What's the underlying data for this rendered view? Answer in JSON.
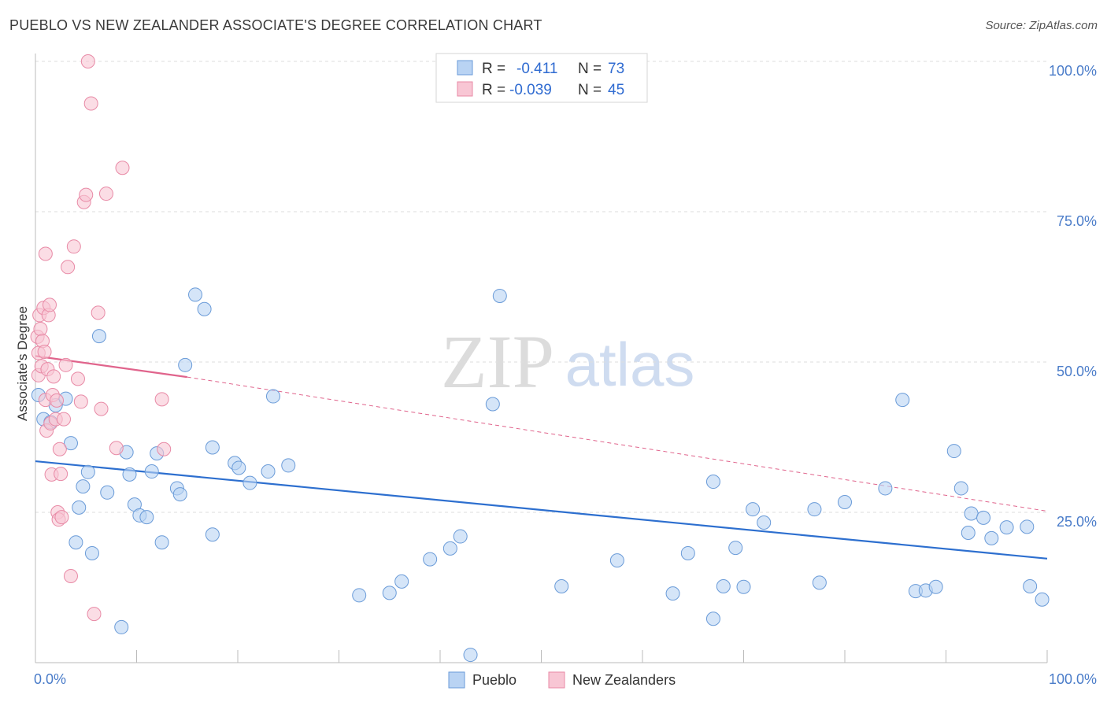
{
  "header": {
    "title": "PUEBLO VS NEW ZEALANDER ASSOCIATE'S DEGREE CORRELATION CHART",
    "source": "Source: ZipAtlas.com"
  },
  "colors": {
    "pueblo_fill": "#b9d3f3",
    "pueblo_stroke": "#6a9bd8",
    "pueblo_line": "#2d6fcf",
    "nz_fill": "#f8c6d4",
    "nz_stroke": "#e88aa6",
    "nz_line": "#e0648c",
    "axis_text": "#4a7cc9"
  },
  "legend": {
    "rows": [
      {
        "r_label": "R =",
        "r_value": "-0.411",
        "n_label": "N =",
        "n_value": "73"
      },
      {
        "r_label": "R =",
        "r_value": "-0.039",
        "n_label": "N =",
        "n_value": "45"
      }
    ]
  },
  "bottom_legend": {
    "pueblo": "Pueblo",
    "nz": "New Zealanders"
  },
  "watermark": {
    "zip": "ZIP",
    "atlas": "atlas"
  },
  "chart_data": {
    "type": "scatter",
    "title": "PUEBLO VS NEW ZEALANDER ASSOCIATE'S DEGREE CORRELATION CHART",
    "xlabel": "",
    "ylabel": "Associate's Degree",
    "xlim": [
      0,
      100
    ],
    "ylim": [
      0,
      100
    ],
    "x_tick_labels": [
      "0.0%",
      "100.0%"
    ],
    "y_ticks": [
      {
        "value": 25,
        "label": "25.0%"
      },
      {
        "value": 50,
        "label": "50.0%"
      },
      {
        "value": 75,
        "label": "75.0%"
      },
      {
        "value": 100,
        "label": "100.0%"
      }
    ],
    "series": [
      {
        "name": "Pueblo",
        "r": -0.411,
        "n": 73,
        "trend": {
          "x0": 0,
          "y0": 33.5,
          "x1": 100,
          "y1": 17.3,
          "dashed_extension": false
        },
        "points": [
          [
            0.3,
            44.5
          ],
          [
            0.8,
            40.5
          ],
          [
            1.5,
            40.0
          ],
          [
            2.0,
            42.8
          ],
          [
            3.0,
            43.9
          ],
          [
            3.5,
            36.5
          ],
          [
            4.0,
            20.0
          ],
          [
            4.3,
            25.8
          ],
          [
            4.7,
            29.3
          ],
          [
            5.2,
            31.7
          ],
          [
            5.6,
            18.2
          ],
          [
            6.3,
            54.3
          ],
          [
            7.1,
            28.3
          ],
          [
            8.5,
            5.9
          ],
          [
            9.0,
            35.0
          ],
          [
            9.3,
            31.3
          ],
          [
            9.8,
            26.3
          ],
          [
            10.3,
            24.5
          ],
          [
            11.0,
            24.2
          ],
          [
            11.5,
            31.8
          ],
          [
            12.0,
            34.8
          ],
          [
            12.5,
            20.0
          ],
          [
            14.0,
            29.0
          ],
          [
            14.3,
            28.0
          ],
          [
            14.8,
            49.5
          ],
          [
            15.8,
            61.2
          ],
          [
            16.7,
            58.8
          ],
          [
            17.5,
            35.8
          ],
          [
            17.5,
            21.3
          ],
          [
            19.7,
            33.2
          ],
          [
            20.1,
            32.4
          ],
          [
            21.2,
            29.9
          ],
          [
            23.0,
            31.8
          ],
          [
            23.5,
            44.3
          ],
          [
            25.0,
            32.8
          ],
          [
            32.0,
            11.2
          ],
          [
            35.0,
            11.6
          ],
          [
            36.2,
            13.5
          ],
          [
            39.0,
            17.2
          ],
          [
            41.0,
            19.0
          ],
          [
            42.0,
            21.0
          ],
          [
            43.0,
            1.3
          ],
          [
            45.2,
            43.0
          ],
          [
            45.9,
            61.0
          ],
          [
            57.5,
            17.0
          ],
          [
            63.0,
            11.5
          ],
          [
            64.5,
            18.2
          ],
          [
            67.0,
            7.3
          ],
          [
            67.0,
            30.1
          ],
          [
            68.0,
            12.7
          ],
          [
            69.2,
            19.1
          ],
          [
            70.0,
            12.6
          ],
          [
            70.9,
            25.5
          ],
          [
            72.0,
            23.3
          ],
          [
            77.0,
            25.5
          ],
          [
            77.5,
            13.3
          ],
          [
            80.0,
            26.7
          ],
          [
            84.0,
            29.0
          ],
          [
            85.7,
            43.7
          ],
          [
            87.0,
            11.9
          ],
          [
            88.0,
            12.0
          ],
          [
            89.0,
            12.6
          ],
          [
            90.8,
            35.2
          ],
          [
            91.5,
            29.0
          ],
          [
            92.2,
            21.6
          ],
          [
            92.5,
            24.8
          ],
          [
            93.7,
            24.1
          ],
          [
            94.5,
            20.7
          ],
          [
            96.0,
            22.5
          ],
          [
            98.0,
            22.6
          ],
          [
            98.3,
            12.7
          ],
          [
            99.5,
            10.5
          ],
          [
            52.0,
            12.7
          ]
        ]
      },
      {
        "name": "New Zealanders",
        "r": -0.039,
        "n": 45,
        "trend": {
          "x0": 0,
          "y0": 51.0,
          "x1": 15,
          "y1": 47.5,
          "dashed_to": {
            "x": 100,
            "y": 25.2
          }
        },
        "points": [
          [
            0.2,
            54.2
          ],
          [
            0.3,
            51.5
          ],
          [
            0.3,
            47.8
          ],
          [
            0.4,
            57.8
          ],
          [
            0.5,
            55.5
          ],
          [
            0.6,
            49.3
          ],
          [
            0.7,
            53.5
          ],
          [
            0.8,
            59.0
          ],
          [
            0.9,
            51.7
          ],
          [
            1.0,
            68.0
          ],
          [
            1.0,
            43.7
          ],
          [
            1.1,
            38.6
          ],
          [
            1.2,
            48.8
          ],
          [
            1.3,
            57.8
          ],
          [
            1.4,
            59.5
          ],
          [
            1.5,
            39.8
          ],
          [
            1.6,
            31.3
          ],
          [
            1.7,
            44.5
          ],
          [
            1.8,
            47.6
          ],
          [
            2.0,
            40.5
          ],
          [
            2.1,
            43.6
          ],
          [
            2.2,
            25.0
          ],
          [
            2.3,
            23.8
          ],
          [
            2.4,
            35.5
          ],
          [
            2.5,
            31.4
          ],
          [
            2.6,
            24.2
          ],
          [
            2.8,
            40.5
          ],
          [
            3.0,
            49.5
          ],
          [
            3.2,
            65.8
          ],
          [
            3.5,
            14.4
          ],
          [
            3.8,
            69.2
          ],
          [
            4.2,
            47.2
          ],
          [
            4.5,
            43.4
          ],
          [
            4.8,
            76.6
          ],
          [
            5.0,
            77.8
          ],
          [
            5.2,
            100.0
          ],
          [
            5.5,
            93.0
          ],
          [
            5.8,
            8.1
          ],
          [
            6.2,
            58.2
          ],
          [
            6.5,
            42.2
          ],
          [
            7.0,
            78.0
          ],
          [
            8.0,
            35.7
          ],
          [
            8.6,
            82.3
          ],
          [
            12.5,
            43.8
          ],
          [
            12.7,
            35.5
          ]
        ]
      }
    ]
  }
}
